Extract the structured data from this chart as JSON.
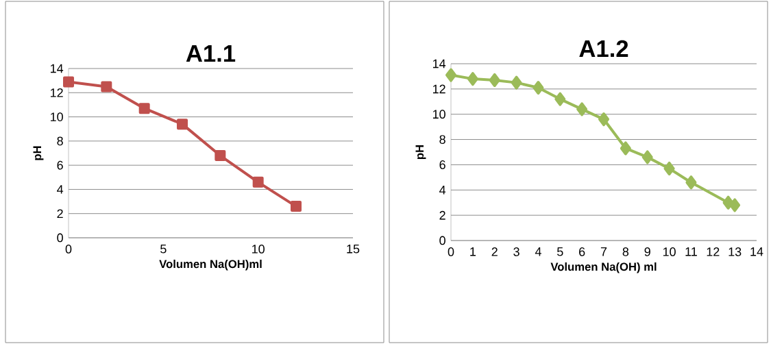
{
  "chart_data": [
    {
      "type": "line",
      "title": "A1.1",
      "xlabel": "Volumen Na(OH)ml",
      "ylabel": "pH",
      "x": [
        0,
        2,
        4,
        6,
        8,
        10,
        12
      ],
      "values": [
        12.9,
        12.5,
        10.7,
        9.4,
        6.8,
        4.6,
        2.6
      ],
      "color": "#c0504d",
      "marker": "square",
      "xlim": [
        0,
        15
      ],
      "xticks": [
        0,
        5,
        10,
        15
      ],
      "ylim": [
        0,
        14
      ],
      "yticks": [
        0,
        2,
        4,
        6,
        8,
        10,
        12,
        14
      ],
      "grid": "y"
    },
    {
      "type": "line",
      "title": "A1.2",
      "xlabel": "Volumen Na(OH) ml",
      "ylabel": "pH",
      "x": [
        0,
        1,
        2,
        3,
        4,
        5,
        6,
        7,
        8,
        9,
        10,
        11,
        12.7,
        13
      ],
      "values": [
        13.1,
        12.8,
        12.7,
        12.5,
        12.1,
        11.2,
        10.4,
        9.6,
        7.3,
        6.6,
        5.7,
        4.6,
        3.0,
        2.8
      ],
      "color": "#9bbb59",
      "marker": "diamond",
      "xlim": [
        0,
        14
      ],
      "xticks": [
        0,
        1,
        2,
        3,
        4,
        5,
        6,
        7,
        8,
        9,
        10,
        11,
        12,
        13,
        14
      ],
      "ylim": [
        0,
        14
      ],
      "yticks": [
        0,
        2,
        4,
        6,
        8,
        10,
        12,
        14
      ],
      "grid": "y"
    }
  ]
}
